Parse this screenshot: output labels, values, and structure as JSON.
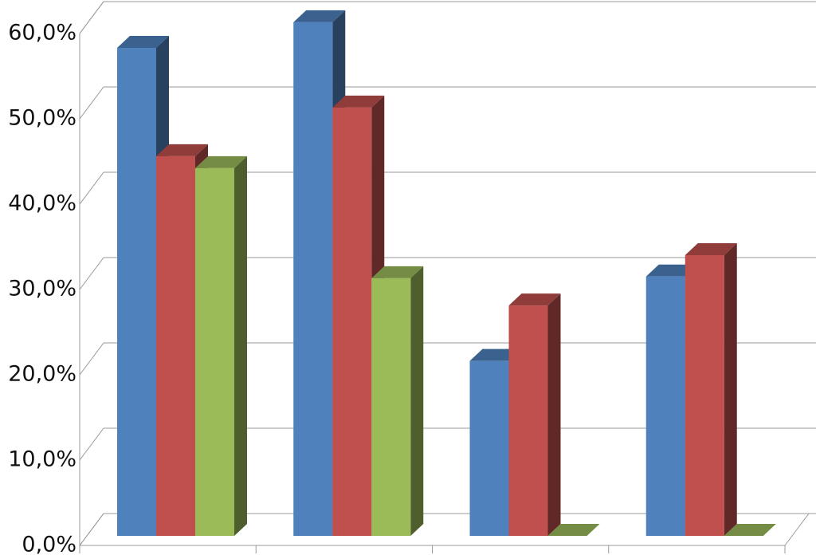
{
  "chart_data": {
    "type": "bar3d",
    "categories": [
      null,
      null,
      null,
      null
    ],
    "series": [
      {
        "color": "#4f81bd",
        "values": [
          57.2,
          60.2,
          20.5,
          30.4
        ]
      },
      {
        "color": "#c0504d",
        "values": [
          44.5,
          50.2,
          27.0,
          32.9
        ]
      },
      {
        "color": "#9bbb59",
        "values": [
          43.1,
          30.2,
          0,
          0
        ]
      }
    ],
    "ylim": [
      0,
      60
    ],
    "yticks": [
      {
        "value": 0,
        "label": "0,0%"
      },
      {
        "value": 10,
        "label": "10,0%"
      },
      {
        "value": 20,
        "label": "20,0%"
      },
      {
        "value": 30,
        "label": "30,0%"
      },
      {
        "value": 40,
        "label": "40,0%"
      },
      {
        "value": 50,
        "label": "50,0%"
      },
      {
        "value": 60,
        "label": "60,0%"
      }
    ],
    "grid": true
  }
}
